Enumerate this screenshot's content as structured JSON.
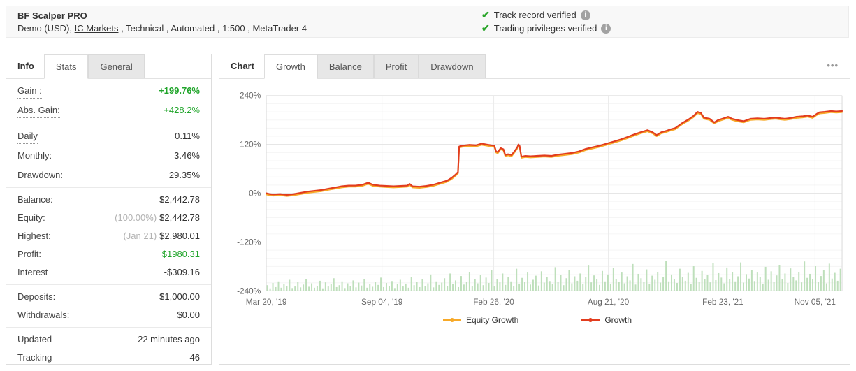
{
  "header": {
    "title": "BF Scalper PRO",
    "subtitle_prefix": "Demo (USD), ",
    "broker_link": "IC Markets",
    "subtitle_suffix": " , Technical , Automated , 1:500 , MetaTrader 4",
    "badges": [
      {
        "label": "Track record verified"
      },
      {
        "label": "Trading privileges verified"
      }
    ]
  },
  "icons": {
    "check": "✔",
    "info": "i",
    "menu": "•••"
  },
  "stats_panel": {
    "title": "Info",
    "tabs": [
      "Stats",
      "General"
    ],
    "groups": [
      {
        "rows": [
          {
            "label": "Gain :",
            "value": "+199.76%"
          },
          {
            "label": "Abs. Gain:",
            "value": "+428.2%"
          }
        ]
      },
      {
        "rows": [
          {
            "label": "Daily",
            "value": "0.11%"
          },
          {
            "label": "Monthly:",
            "value": "3.46%"
          },
          {
            "label": "Drawdown:",
            "value": "29.35%"
          }
        ]
      },
      {
        "rows": [
          {
            "label": "Balance:",
            "value": "$2,442.78"
          },
          {
            "label": "Equity:",
            "prefix": "(100.00%)",
            "value": "$2,442.78"
          },
          {
            "label": "Highest:",
            "prefix": "(Jan 21)",
            "value": "$2,980.01"
          },
          {
            "label": "Profit:",
            "value": "$1980.31"
          },
          {
            "label": "Interest",
            "value": "-$309.16"
          }
        ]
      },
      {
        "rows": [
          {
            "label": "Deposits:",
            "value": "$1,000.00"
          },
          {
            "label": "Withdrawals:",
            "value": "$0.00"
          }
        ]
      },
      {
        "rows": [
          {
            "label": "Updated",
            "value": "22 minutes ago"
          },
          {
            "label": "Tracking",
            "value": "46"
          }
        ]
      }
    ]
  },
  "chart_panel": {
    "title": "Chart",
    "tabs": [
      "Growth",
      "Balance",
      "Profit",
      "Drawdown"
    ]
  },
  "chart_data": {
    "type": "line",
    "ylim": [
      -240,
      240
    ],
    "y_unit": "%",
    "y_ticks": [
      240,
      120,
      0,
      -120,
      -240
    ],
    "minor_grid_step": 20,
    "x_ticks": [
      {
        "pos": 0.0,
        "label": "Mar 20, '19"
      },
      {
        "pos": 0.201,
        "label": "Sep 04, '19"
      },
      {
        "pos": 0.395,
        "label": "Feb 26, '20"
      },
      {
        "pos": 0.594,
        "label": "Aug 21, '20"
      },
      {
        "pos": 0.793,
        "label": "Feb 23, '21"
      },
      {
        "pos": 0.953,
        "label": "Nov 05, '21"
      }
    ],
    "series": [
      {
        "name": "Equity Growth",
        "color": "#f7a928"
      },
      {
        "name": "Growth",
        "color": "#e23c1e"
      }
    ],
    "legend_position": "bottom",
    "growth_series": [
      [
        0.0,
        0
      ],
      [
        0.006,
        -2
      ],
      [
        0.012,
        -3
      ],
      [
        0.024,
        -2
      ],
      [
        0.036,
        -4
      ],
      [
        0.048,
        -2
      ],
      [
        0.06,
        1
      ],
      [
        0.072,
        4
      ],
      [
        0.084,
        6
      ],
      [
        0.096,
        8
      ],
      [
        0.107,
        11
      ],
      [
        0.119,
        14
      ],
      [
        0.131,
        17
      ],
      [
        0.143,
        19
      ],
      [
        0.155,
        19
      ],
      [
        0.167,
        21
      ],
      [
        0.177,
        26
      ],
      [
        0.185,
        21
      ],
      [
        0.197,
        19
      ],
      [
        0.209,
        18
      ],
      [
        0.221,
        17
      ],
      [
        0.233,
        18
      ],
      [
        0.245,
        19
      ],
      [
        0.249,
        23
      ],
      [
        0.254,
        17
      ],
      [
        0.266,
        16
      ],
      [
        0.278,
        18
      ],
      [
        0.29,
        21
      ],
      [
        0.302,
        26
      ],
      [
        0.314,
        31
      ],
      [
        0.322,
        38
      ],
      [
        0.328,
        45
      ],
      [
        0.333,
        52
      ],
      [
        0.335,
        115
      ],
      [
        0.34,
        117
      ],
      [
        0.352,
        119
      ],
      [
        0.364,
        118
      ],
      [
        0.374,
        122
      ],
      [
        0.382,
        120
      ],
      [
        0.39,
        118
      ],
      [
        0.396,
        117
      ],
      [
        0.399,
        103
      ],
      [
        0.402,
        101
      ],
      [
        0.407,
        111
      ],
      [
        0.412,
        108
      ],
      [
        0.415,
        94
      ],
      [
        0.42,
        96
      ],
      [
        0.426,
        94
      ],
      [
        0.431,
        103
      ],
      [
        0.436,
        113
      ],
      [
        0.438,
        120
      ],
      [
        0.44,
        116
      ],
      [
        0.443,
        90
      ],
      [
        0.45,
        92
      ],
      [
        0.459,
        91
      ],
      [
        0.471,
        92
      ],
      [
        0.483,
        93
      ],
      [
        0.495,
        92
      ],
      [
        0.507,
        95
      ],
      [
        0.519,
        97
      ],
      [
        0.531,
        99
      ],
      [
        0.543,
        103
      ],
      [
        0.555,
        109
      ],
      [
        0.567,
        113
      ],
      [
        0.579,
        117
      ],
      [
        0.591,
        122
      ],
      [
        0.603,
        127
      ],
      [
        0.615,
        132
      ],
      [
        0.627,
        138
      ],
      [
        0.638,
        144
      ],
      [
        0.65,
        150
      ],
      [
        0.662,
        155
      ],
      [
        0.671,
        150
      ],
      [
        0.678,
        143
      ],
      [
        0.686,
        150
      ],
      [
        0.694,
        153
      ],
      [
        0.702,
        157
      ],
      [
        0.71,
        160
      ],
      [
        0.722,
        172
      ],
      [
        0.734,
        182
      ],
      [
        0.742,
        190
      ],
      [
        0.749,
        200
      ],
      [
        0.755,
        197
      ],
      [
        0.76,
        186
      ],
      [
        0.77,
        183
      ],
      [
        0.778,
        174
      ],
      [
        0.785,
        180
      ],
      [
        0.794,
        184
      ],
      [
        0.802,
        188
      ],
      [
        0.809,
        183
      ],
      [
        0.817,
        180
      ],
      [
        0.829,
        177
      ],
      [
        0.841,
        183
      ],
      [
        0.853,
        184
      ],
      [
        0.865,
        183
      ],
      [
        0.877,
        185
      ],
      [
        0.885,
        186
      ],
      [
        0.894,
        184
      ],
      [
        0.901,
        183
      ],
      [
        0.911,
        185
      ],
      [
        0.921,
        188
      ],
      [
        0.931,
        189
      ],
      [
        0.94,
        191
      ],
      [
        0.949,
        188
      ],
      [
        0.956,
        195
      ],
      [
        0.961,
        199
      ],
      [
        0.97,
        200
      ],
      [
        0.981,
        202
      ],
      [
        0.99,
        201
      ],
      [
        1.0,
        202
      ]
    ],
    "equity_series_note": "Equity Growth overlaps Growth almost exactly (drawn just beneath it)",
    "volume_bars": [
      0.18,
      0.08,
      0.25,
      0.12,
      0.3,
      0.1,
      0.22,
      0.15,
      0.35,
      0.09,
      0.14,
      0.28,
      0.11,
      0.2,
      0.38,
      0.13,
      0.24,
      0.1,
      0.16,
      0.32,
      0.08,
      0.27,
      0.14,
      0.21,
      0.4,
      0.12,
      0.18,
      0.3,
      0.09,
      0.24,
      0.15,
      0.33,
      0.11,
      0.26,
      0.17,
      0.36,
      0.1,
      0.22,
      0.13,
      0.29,
      0.19,
      0.42,
      0.12,
      0.25,
      0.16,
      0.31,
      0.09,
      0.21,
      0.35,
      0.14,
      0.23,
      0.1,
      0.44,
      0.18,
      0.28,
      0.12,
      0.37,
      0.15,
      0.24,
      0.52,
      0.11,
      0.3,
      0.19,
      0.26,
      0.4,
      0.16,
      0.55,
      0.22,
      0.33,
      0.12,
      0.47,
      0.2,
      0.28,
      0.6,
      0.15,
      0.36,
      0.24,
      0.5,
      0.18,
      0.42,
      0.25,
      0.65,
      0.14,
      0.38,
      0.27,
      0.55,
      0.19,
      0.45,
      0.3,
      0.16,
      0.7,
      0.23,
      0.41,
      0.28,
      0.58,
      0.2,
      0.35,
      0.48,
      0.17,
      0.62,
      0.26,
      0.44,
      0.31,
      0.21,
      0.75,
      0.29,
      0.5,
      0.18,
      0.4,
      0.66,
      0.24,
      0.46,
      0.32,
      0.55,
      0.21,
      0.44,
      0.8,
      0.27,
      0.49,
      0.36,
      0.19,
      0.63,
      0.3,
      0.52,
      0.23,
      0.72,
      0.38,
      0.28,
      0.58,
      0.24,
      0.46,
      0.33,
      0.85,
      0.2,
      0.54,
      0.4,
      0.29,
      0.68,
      0.22,
      0.48,
      0.35,
      0.6,
      0.26,
      0.44,
      0.95,
      0.3,
      0.52,
      0.38,
      0.25,
      0.7,
      0.45,
      0.32,
      0.57,
      0.22,
      0.78,
      0.41,
      0.28,
      0.63,
      0.36,
      0.5,
      0.27,
      0.88,
      0.34,
      0.56,
      0.42,
      0.24,
      0.74,
      0.38,
      0.6,
      0.3,
      0.46,
      0.9,
      0.26,
      0.53,
      0.39,
      0.67,
      0.31,
      0.58,
      0.44,
      0.23,
      0.76,
      0.35,
      0.62,
      0.28,
      0.49,
      0.82,
      0.37,
      0.55,
      0.25,
      0.71,
      0.43,
      0.33,
      0.6,
      0.27,
      0.93,
      0.41,
      0.54,
      0.36,
      0.78,
      0.29,
      0.47,
      0.65,
      0.24,
      0.86,
      0.39,
      0.57,
      0.32,
      0.7
    ],
    "colors": {
      "bars": "#bedfbb",
      "grid_major": "#e3e3e3",
      "grid_minor": "#f5f5f5",
      "grid_vertical": "#ececec",
      "axis_frame": "#d9d9d9",
      "axis_text": "#666666"
    }
  }
}
